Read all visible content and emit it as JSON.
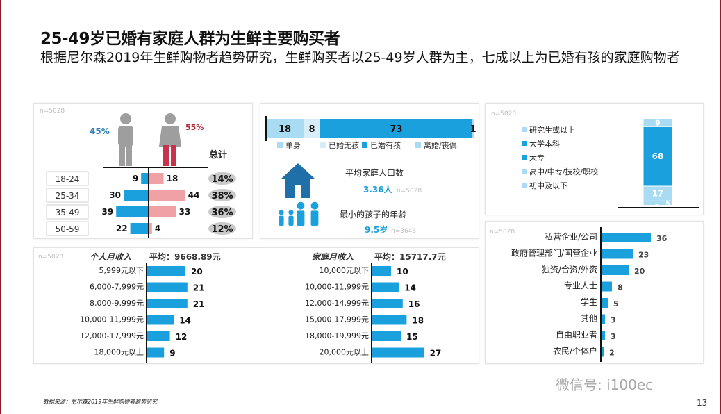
{
  "title": "25-49岁已婚有家庭人群为生鲜主要购买者",
  "subtitle": "根据尼尔森2019年生鲜购物者趋势研究，生鲜购买者以25-49岁人群为主，七成以上为已婚有孩的家庭购物者",
  "source": "数据来源：尼尔森2019年生鲜购物者趋势研究",
  "page_number": "13",
  "watermark": "微信号: i100ec",
  "colors": {
    "blue": "#1aa0dc",
    "light_blue": "#a9dcf3",
    "pink": "#f0a1a5",
    "male": "#9e9e9e",
    "female": "#c8324a",
    "dark_red": "#b32a3a",
    "frame": "#8e1b2a"
  },
  "chart_data": [
    {
      "type": "bar",
      "id": "gender_age",
      "n_label": "n=5028",
      "gender": {
        "male_pct": "45%",
        "female_pct": "55%"
      },
      "total_label": "总计",
      "categories": [
        "18-24",
        "25-34",
        "35-49",
        "50-59"
      ],
      "series": [
        {
          "values": [
            9,
            30,
            39,
            22
          ]
        },
        {
          "values": [
            18,
            44,
            33,
            4
          ]
        }
      ],
      "totals": [
        "14%",
        "38%",
        "36%",
        "12%"
      ]
    },
    {
      "type": "bar",
      "id": "family_status",
      "stacked": true,
      "values": [
        18,
        8,
        73,
        1
      ],
      "legend": [
        "单身",
        "已婚无孩",
        "已婚有孩",
        "离婚/丧偶"
      ],
      "stats": [
        {
          "label": "平均家庭人口数",
          "value": "3.36人",
          "n": "n=5028"
        },
        {
          "label": "最小的孩子的年龄",
          "value": "9.5岁",
          "n": "n=3643"
        }
      ]
    },
    {
      "type": "bar",
      "id": "education",
      "stacked": true,
      "n_label": "n=5028",
      "legend": [
        "研究生或以上",
        "大学本科",
        "大专",
        "高中/中专/技校/职校",
        "初中及以下"
      ],
      "values": [
        9,
        68,
        17,
        5,
        1
      ],
      "legend_colors": [
        "#a9dcf3",
        "#1aa0dc",
        "#1aa0dc",
        "#a9dcf3",
        "#a9dcf3"
      ]
    },
    {
      "type": "bar",
      "id": "occupation",
      "n_label": "n=5028",
      "categories": [
        "私营企业/公司",
        "政府管理部门/国营企业",
        "独资/合资/外资",
        "专业人士",
        "学生",
        "其他",
        "自由职业者",
        "农民/个体户"
      ],
      "values": [
        36,
        23,
        20,
        8,
        5,
        3,
        3,
        2
      ]
    },
    {
      "type": "bar",
      "id": "personal_income",
      "n_label": "n=5028",
      "title": "个人月收入",
      "avg": "平均：9668.89元",
      "categories": [
        "5,999元以下",
        "6,000-7,999元",
        "8,000-9,999元",
        "10,000-11,999元",
        "12,000-17,999元",
        "18,000元以上"
      ],
      "values": [
        20,
        21,
        21,
        14,
        12,
        9
      ]
    },
    {
      "type": "bar",
      "id": "family_income",
      "title": "家庭月收入",
      "avg": "平均：15717.7元",
      "categories": [
        "10,000元以下",
        "10,000-11,999元",
        "12,000-14,999元",
        "15,000-17,999元",
        "18,000-19,999元",
        "20,000元以上"
      ],
      "values": [
        10,
        14,
        16,
        18,
        15,
        27
      ]
    }
  ]
}
